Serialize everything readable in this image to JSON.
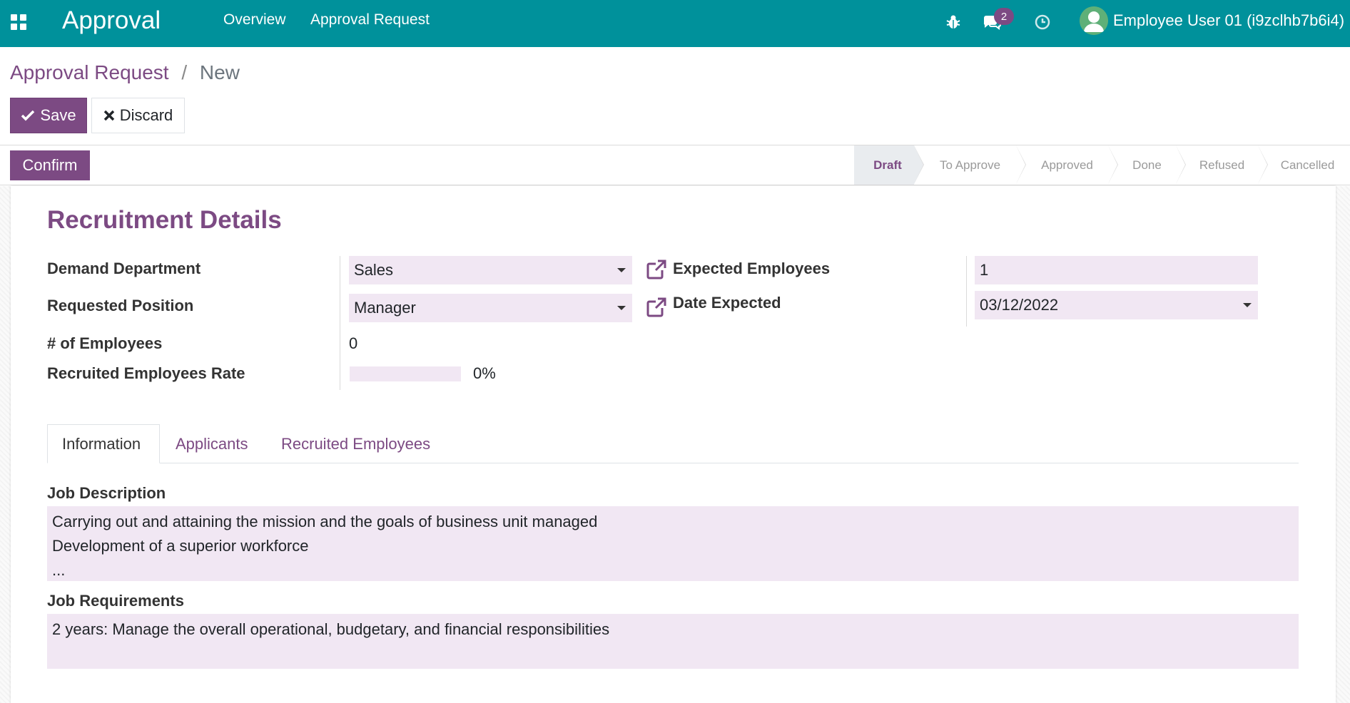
{
  "navbar": {
    "app_title": "Approval",
    "menu": [
      "Overview",
      "Approval Request"
    ],
    "icons": [
      "apps-icon",
      "bug-icon",
      "chat-icon",
      "clock-icon"
    ],
    "message_count": "2",
    "user_name": "Employee User 01 (i9zclhb7b6i4)"
  },
  "breadcrumb": {
    "parent": "Approval Request",
    "separator": "/",
    "current": "New"
  },
  "buttons": {
    "save": "Save",
    "discard": "Discard",
    "confirm": "Confirm"
  },
  "stages": [
    "Draft",
    "To Approve",
    "Approved",
    "Done",
    "Refused",
    "Cancelled"
  ],
  "active_stage": "Draft",
  "form": {
    "title": "Recruitment Details",
    "demand_department_label": "Demand Department",
    "demand_department_value": "Sales",
    "requested_position_label": "Requested Position",
    "requested_position_value": "Manager",
    "num_employees_label": "# of Employees",
    "num_employees_value": "0",
    "recruited_rate_label": "Recruited Employees Rate",
    "recruited_rate_value": 0,
    "recruited_rate_text": "0%",
    "expected_employees_label": "Expected Employees",
    "expected_employees_value": "1",
    "date_expected_label": "Date Expected",
    "date_expected_value": "03/12/2022"
  },
  "tabs": [
    "Information",
    "Applicants",
    "Recruited Employees"
  ],
  "active_tab": "Information",
  "information": {
    "job_description_label": "Job Description",
    "job_description_value": "Carrying out and attaining the mission and the goals of business unit managed\nDevelopment of a superior workforce\n...",
    "job_requirements_label": "Job Requirements",
    "job_requirements_value": "2 years: Manage the overall operational, budgetary, and financial responsibilities"
  },
  "colors": {
    "navbar": "#00919b",
    "primary": "#7c4a83",
    "field_bg": "#f1e7f3"
  }
}
